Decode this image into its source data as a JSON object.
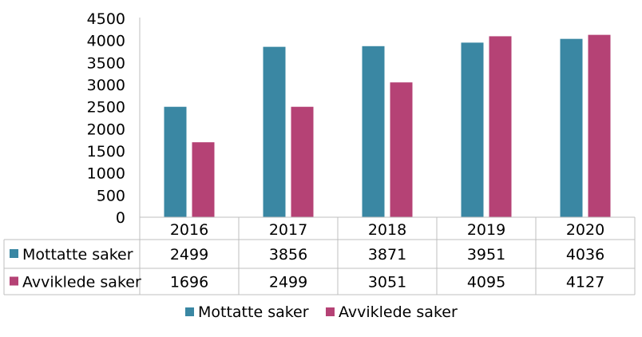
{
  "chart_data": {
    "type": "bar",
    "categories": [
      "2016",
      "2017",
      "2018",
      "2019",
      "2020"
    ],
    "series": [
      {
        "name": "Mottatte saker",
        "values": [
          2499,
          3856,
          3871,
          3951,
          4036
        ],
        "color": "#3a87a3"
      },
      {
        "name": "Avviklede saker",
        "values": [
          1696,
          2499,
          3051,
          4095,
          4127
        ],
        "color": "#b54275"
      }
    ],
    "ylim": [
      0,
      4500
    ],
    "yticks": [
      "0",
      "500",
      "1000",
      "1500",
      "2000",
      "2500",
      "3000",
      "3500",
      "4000",
      "4500"
    ],
    "grid": false,
    "data_table": true,
    "legend_position": "bottom"
  }
}
